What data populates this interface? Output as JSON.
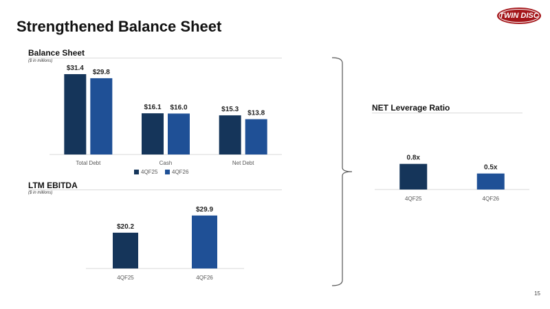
{
  "page": {
    "title": "Strengthened Balance Sheet",
    "page_number": "15"
  },
  "logo": {
    "text": "TWIN DISC"
  },
  "colors": {
    "dark": "#15355a",
    "light": "#1f5096",
    "logo_red": "#a4161a"
  },
  "sections": {
    "balance": {
      "title": "Balance Sheet",
      "subtitle": "($ in millions)"
    },
    "ebitda": {
      "title": "LTM EBITDA",
      "subtitle": "($ in millions)"
    },
    "leverage": {
      "title": "NET Leverage Ratio"
    }
  },
  "chart_data": [
    {
      "id": "balance",
      "type": "bar",
      "categories": [
        "Total Debt",
        "Cash",
        "Net Debt"
      ],
      "series": [
        {
          "name": "4QF25",
          "values": [
            31.4,
            16.1,
            15.3
          ],
          "labels": [
            "$31.4",
            "$16.1",
            "$15.3"
          ]
        },
        {
          "name": "4QF26",
          "values": [
            29.8,
            16.0,
            13.8
          ],
          "labels": [
            "$29.8",
            "$16.0",
            "$13.8"
          ]
        }
      ],
      "ylim": [
        0,
        33
      ],
      "legend": "bottom",
      "grid": false
    },
    {
      "id": "ebitda",
      "type": "bar",
      "categories": [
        "4QF25",
        "4QF26"
      ],
      "values": [
        20.2,
        29.9
      ],
      "labels": [
        "$20.2",
        "$29.9"
      ],
      "ylim": [
        0,
        31
      ],
      "grid": false
    },
    {
      "id": "leverage",
      "type": "bar",
      "categories": [
        "4QF25",
        "4QF26"
      ],
      "values": [
        0.8,
        0.5
      ],
      "labels": [
        "0.8x",
        "0.5x"
      ],
      "ylim": [
        0,
        0.9
      ],
      "grid": false
    }
  ]
}
